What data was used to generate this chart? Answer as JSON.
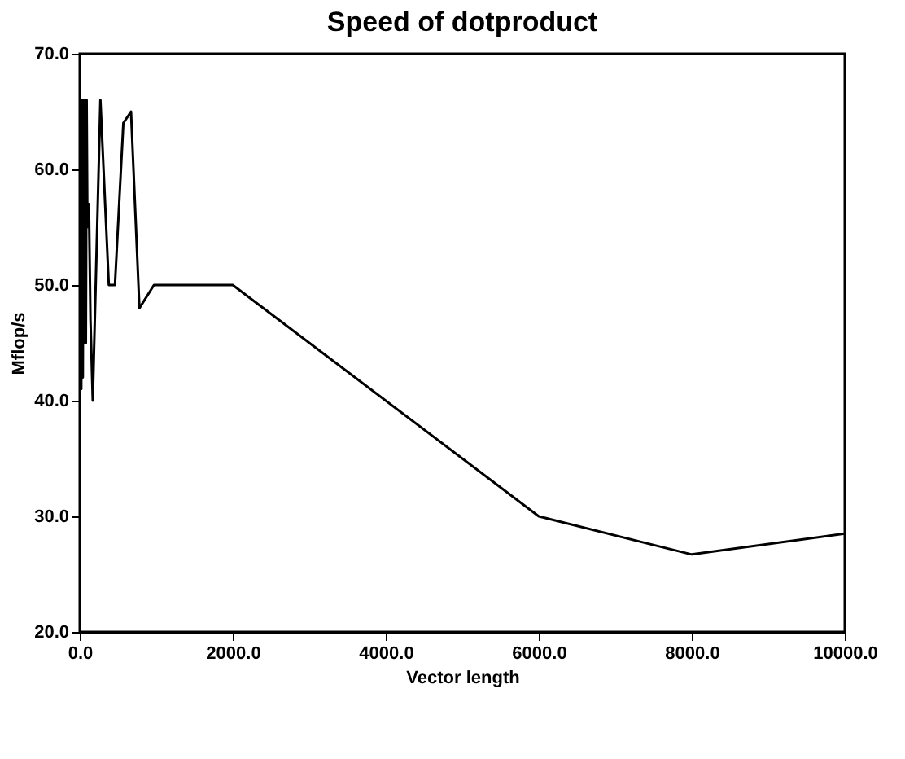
{
  "chart_data": {
    "type": "line",
    "title": "Speed of dotproduct",
    "xlabel": "Vector length",
    "ylabel": "Mflop/s",
    "x": [
      1,
      10,
      20,
      30,
      40,
      50,
      60,
      70,
      80,
      90,
      100,
      120,
      140,
      170,
      270,
      380,
      460,
      570,
      670,
      780,
      970,
      2000,
      6000,
      8000,
      10000
    ],
    "series": [
      {
        "color": "#000000",
        "values": [
          66,
          66,
          41,
          66,
          42,
          66,
          45,
          66,
          45,
          66,
          55,
          57,
          47,
          40,
          66,
          50,
          50,
          64,
          65,
          48,
          50,
          50,
          30,
          26.7,
          28.5
        ]
      }
    ],
    "xlim": [
      0,
      10000
    ],
    "xticks": [
      {
        "value": 0,
        "label": "0.0"
      },
      {
        "value": 2000,
        "label": "2000.0"
      },
      {
        "value": 4000,
        "label": "4000.0"
      },
      {
        "value": 6000,
        "label": "6000.0"
      },
      {
        "value": 8000,
        "label": "8000.0"
      },
      {
        "value": 10000,
        "label": "10000.0"
      }
    ],
    "ylim": [
      20,
      70
    ],
    "yticks": [
      {
        "value": 20,
        "label": "20.0"
      },
      {
        "value": 30,
        "label": "30.0"
      },
      {
        "value": 40,
        "label": "40.0"
      },
      {
        "value": 50,
        "label": "50.0"
      },
      {
        "value": 60,
        "label": "60.0"
      },
      {
        "value": 70,
        "label": "70.0"
      }
    ],
    "grid": false,
    "legend": false,
    "marker": "none",
    "line_style": "solid"
  }
}
